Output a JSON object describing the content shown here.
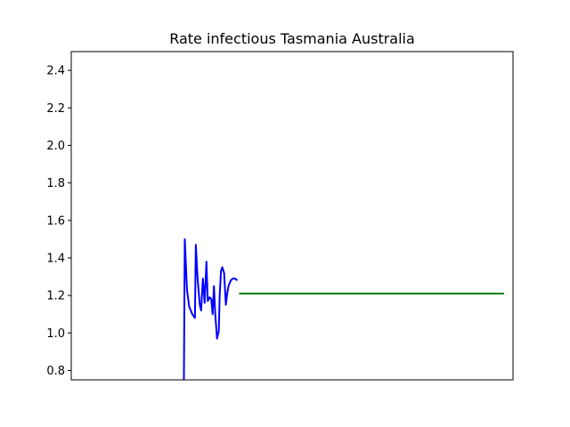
{
  "chart_data": {
    "type": "line",
    "title": "Rate infectious Tasmania Australia",
    "xlabel": "",
    "ylabel": "",
    "ylim": [
      0.75,
      2.5
    ],
    "xlim": [
      0,
      100
    ],
    "x_ticks_shown": false,
    "y_ticks": [
      "0.8",
      "1.0",
      "1.2",
      "1.4",
      "1.6",
      "1.8",
      "2.0",
      "2.2",
      "2.4"
    ],
    "grid": false,
    "series": [
      {
        "color": "#0000ff",
        "x": [
          25.5,
          25.7,
          26.2,
          26.7,
          27.4,
          28.0,
          28.2,
          28.6,
          29.1,
          29.4,
          29.8,
          30.2,
          30.6,
          30.9,
          31.3,
          31.7,
          32.0,
          32.3,
          32.6,
          33.0,
          33.4,
          33.6,
          33.9,
          34.2,
          34.6,
          35.0,
          35.3,
          35.6,
          36.1,
          36.6,
          37.1,
          37.6
        ],
        "y": [
          0.75,
          1.5,
          1.23,
          1.14,
          1.1,
          1.08,
          1.47,
          1.29,
          1.15,
          1.12,
          1.29,
          1.16,
          1.38,
          1.17,
          1.19,
          1.18,
          1.1,
          1.25,
          1.1,
          0.97,
          1.01,
          1.2,
          1.33,
          1.35,
          1.32,
          1.15,
          1.21,
          1.25,
          1.28,
          1.29,
          1.29,
          1.28
        ]
      },
      {
        "color": "#008000",
        "x": [
          38.0,
          98.0
        ],
        "y": [
          1.21,
          1.21
        ]
      }
    ]
  }
}
